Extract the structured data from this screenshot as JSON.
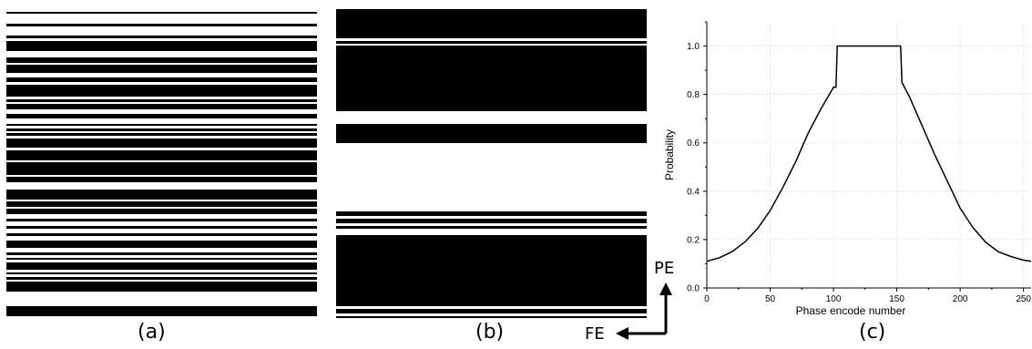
{
  "figure": {
    "panels": [
      {
        "id": "a",
        "label": "(a)"
      },
      {
        "id": "b",
        "label": "(b)"
      },
      {
        "id": "c",
        "label": "(c)"
      }
    ],
    "orientation": {
      "pe_label": "PE",
      "fe_label": "FE"
    }
  },
  "chart_data": {
    "type": "line",
    "title": "",
    "xlabel": "Phase encode number",
    "ylabel": "Probability",
    "xlim": [
      0,
      256
    ],
    "ylim": [
      0.0,
      1.1
    ],
    "x_ticks": [
      "0",
      "50",
      "100",
      "150",
      "200",
      "250"
    ],
    "x_tick_values": [
      0,
      50,
      100,
      150,
      200,
      250
    ],
    "y_ticks": [
      "0.0",
      "0.2",
      "0.4",
      "0.6",
      "0.8",
      "1.0"
    ],
    "y_tick_values": [
      0.0,
      0.2,
      0.4,
      0.6,
      0.8,
      1.0
    ],
    "grid": true,
    "series": [
      {
        "x": [
          0,
          10,
          20,
          30,
          40,
          50,
          60,
          70,
          80,
          90,
          100,
          102,
          103,
          110,
          120,
          130,
          140,
          150,
          153,
          154,
          160,
          170,
          180,
          190,
          200,
          210,
          220,
          230,
          240,
          250,
          256
        ],
        "values": [
          0.11,
          0.125,
          0.15,
          0.19,
          0.245,
          0.32,
          0.415,
          0.52,
          0.64,
          0.74,
          0.83,
          0.83,
          1.0,
          1.0,
          1.0,
          1.0,
          1.0,
          1.0,
          1.0,
          0.85,
          0.79,
          0.67,
          0.55,
          0.44,
          0.33,
          0.25,
          0.19,
          0.15,
          0.13,
          0.115,
          0.11
        ]
      }
    ]
  }
}
